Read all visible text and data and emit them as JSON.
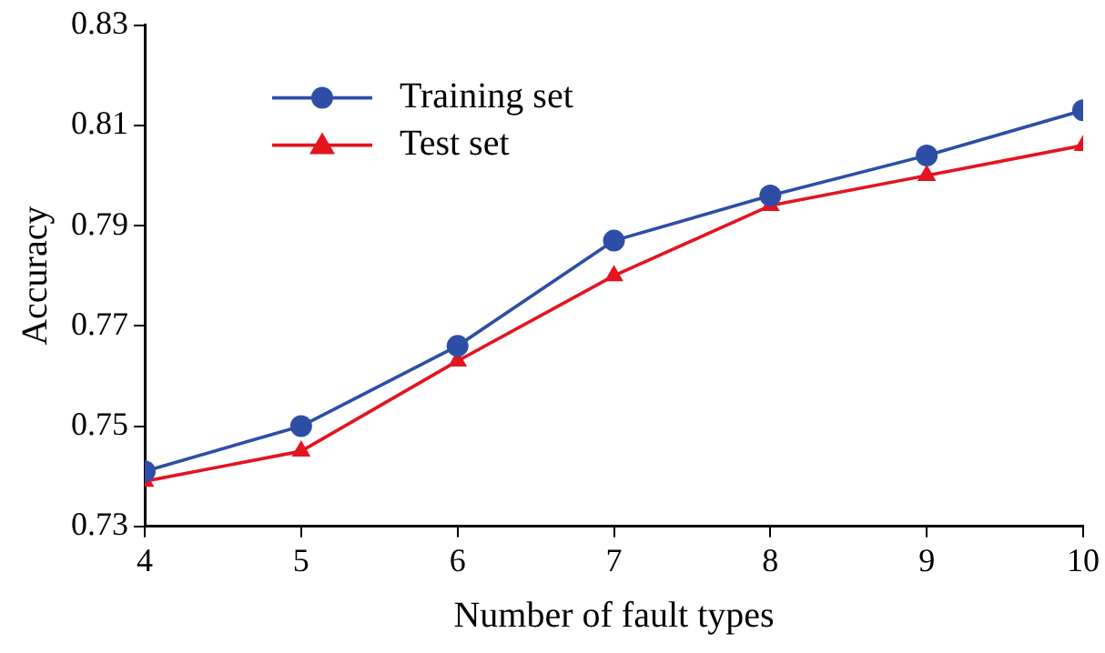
{
  "chart_data": {
    "type": "line",
    "xlabel": "Number of fault types",
    "ylabel": "Accuracy",
    "x": [
      4,
      5,
      6,
      7,
      8,
      9,
      10
    ],
    "series": [
      {
        "name": "Training set",
        "color": "#2e4ea6",
        "marker": "circle",
        "values": [
          0.741,
          0.75,
          0.766,
          0.787,
          0.796,
          0.804,
          0.813
        ]
      },
      {
        "name": "Test set",
        "color": "#e3141f",
        "marker": "triangle",
        "values": [
          0.739,
          0.745,
          0.763,
          0.78,
          0.794,
          0.8,
          0.806
        ]
      }
    ],
    "xlim": [
      4,
      10
    ],
    "xticks": [
      4,
      5,
      6,
      7,
      8,
      9,
      10
    ],
    "ylim": [
      0.73,
      0.83
    ],
    "yticks": [
      0.73,
      0.75,
      0.77,
      0.79,
      0.81,
      0.83
    ],
    "grid": false,
    "legend": "top left",
    "line_style": "solid"
  }
}
